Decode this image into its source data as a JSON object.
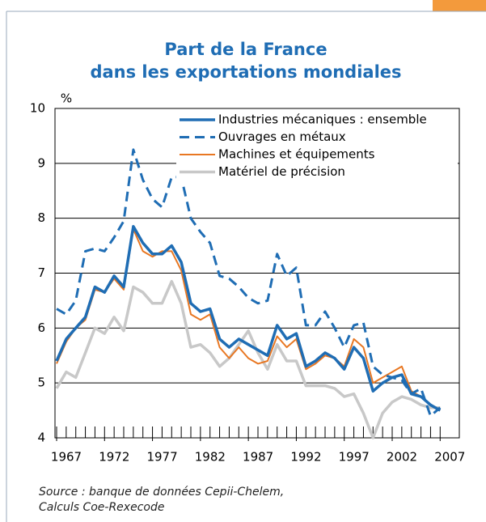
{
  "chart_data": {
    "type": "line",
    "title": [
      "Part de la France",
      "dans les exportations mondiales"
    ],
    "y_label": "%",
    "source": [
      "Source : banque de données Cepii-Chelem,",
      "Calculs Coe-Rexecode"
    ],
    "x": [
      1967,
      1968,
      1969,
      1970,
      1971,
      1972,
      1973,
      1974,
      1975,
      1976,
      1977,
      1978,
      1979,
      1980,
      1981,
      1982,
      1983,
      1984,
      1985,
      1986,
      1987,
      1988,
      1989,
      1990,
      1991,
      1992,
      1993,
      1994,
      1995,
      1996,
      1997,
      1998,
      1999,
      2000,
      2001,
      2002,
      2003,
      2004,
      2005,
      2006,
      2007
    ],
    "xlim": [
      1967,
      2009
    ],
    "xticks": [
      1967,
      1972,
      1977,
      1982,
      1987,
      1992,
      1997,
      2002,
      2007
    ],
    "ylim": [
      4,
      10
    ],
    "yticks": [
      4,
      5,
      6,
      7,
      8,
      9,
      10
    ],
    "series": [
      {
        "name": "Industries mécaniques : ensemble",
        "color": "#1f6db4",
        "dash": false,
        "width": 3.5,
        "values": [
          5.4,
          5.8,
          6.0,
          6.2,
          6.75,
          6.65,
          6.95,
          6.75,
          7.85,
          7.55,
          7.35,
          7.35,
          7.5,
          7.2,
          6.45,
          6.3,
          6.35,
          5.8,
          5.65,
          5.8,
          5.7,
          5.6,
          5.5,
          6.05,
          5.8,
          5.9,
          5.3,
          5.4,
          5.55,
          5.45,
          5.25,
          5.65,
          5.45,
          4.85,
          5.0,
          5.1,
          5.15,
          4.8,
          4.75,
          4.6,
          4.5
        ]
      },
      {
        "name": "Ouvrages en métaux",
        "color": "#1f6db4",
        "dash": true,
        "width": 3,
        "values": [
          6.35,
          6.25,
          6.5,
          7.4,
          7.45,
          7.4,
          7.65,
          7.95,
          9.25,
          8.7,
          8.35,
          8.2,
          8.75,
          8.75,
          8.0,
          7.75,
          7.55,
          6.95,
          6.9,
          6.75,
          6.55,
          6.45,
          6.5,
          7.35,
          6.95,
          7.1,
          6.05,
          6.05,
          6.3,
          6.0,
          5.65,
          6.05,
          6.1,
          5.3,
          5.15,
          5.1,
          5.05,
          4.8,
          4.9,
          4.4,
          4.55
        ]
      },
      {
        "name": "Machines et équipements",
        "color": "#e87722",
        "dash": false,
        "width": 2,
        "values": [
          5.35,
          5.75,
          6.0,
          6.15,
          6.7,
          6.65,
          6.9,
          6.7,
          7.8,
          7.4,
          7.3,
          7.4,
          7.4,
          7.05,
          6.25,
          6.15,
          6.25,
          5.65,
          5.45,
          5.65,
          5.45,
          5.35,
          5.4,
          5.85,
          5.65,
          5.8,
          5.25,
          5.35,
          5.5,
          5.45,
          5.3,
          5.8,
          5.65,
          5.0,
          5.1,
          5.2,
          5.3,
          4.85,
          4.75,
          4.6,
          4.5
        ]
      },
      {
        "name": "Matériel de précision",
        "color": "#c8c8c8",
        "dash": false,
        "width": 3.5,
        "values": [
          4.9,
          5.2,
          5.1,
          5.55,
          6.0,
          5.9,
          6.2,
          5.95,
          6.75,
          6.65,
          6.45,
          6.45,
          6.85,
          6.45,
          5.65,
          5.7,
          5.55,
          5.3,
          5.45,
          5.7,
          5.95,
          5.55,
          5.25,
          5.7,
          5.4,
          5.4,
          4.95,
          4.95,
          4.95,
          4.9,
          4.75,
          4.8,
          4.45,
          4.0,
          4.45,
          4.65,
          4.75,
          4.7,
          4.6,
          4.55,
          4.55
        ]
      }
    ]
  }
}
